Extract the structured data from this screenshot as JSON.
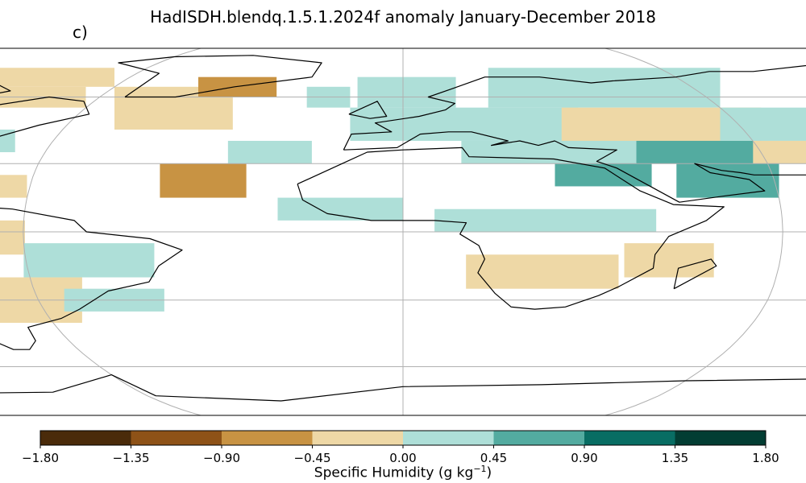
{
  "title": "HadISDH.blendq.1.5.1.2024f anomaly January-December 2018",
  "panel_label": "c)",
  "colorbar": {
    "label_text": "Specific Humidity (g kg",
    "label_exp": "−1",
    "label_close": ")",
    "tick_labels": [
      "−1.80",
      "−1.35",
      "−0.90",
      "−0.45",
      "0.00",
      "0.45",
      "0.90",
      "1.35",
      "1.80"
    ],
    "bins": [
      {
        "from": -1.8,
        "to": -1.35,
        "color": "#4a2b0a"
      },
      {
        "from": -1.35,
        "to": -0.9,
        "color": "#8e5217"
      },
      {
        "from": -0.9,
        "to": -0.45,
        "color": "#c89343"
      },
      {
        "from": -0.45,
        "to": 0.0,
        "color": "#eed8a6"
      },
      {
        "from": 0.0,
        "to": 0.45,
        "color": "#aedfd8"
      },
      {
        "from": 0.45,
        "to": 0.9,
        "color": "#53aba0"
      },
      {
        "from": 0.9,
        "to": 1.35,
        "color": "#086d63"
      },
      {
        "from": 1.35,
        "to": 1.8,
        "color": "#023d33"
      }
    ]
  },
  "map": {
    "projection": "robinson",
    "gridlines": true
  }
}
